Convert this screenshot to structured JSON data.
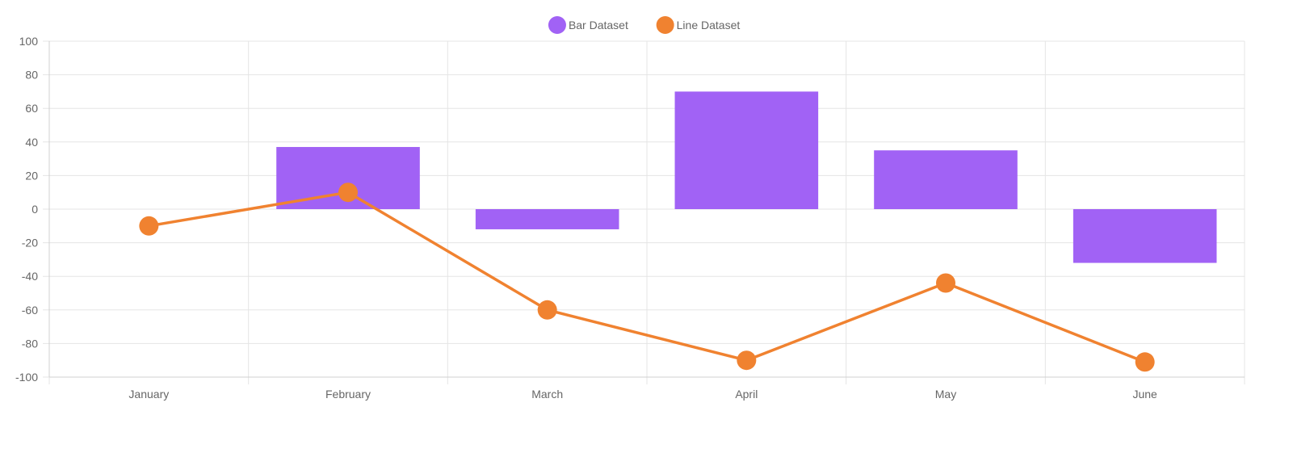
{
  "chart_data": {
    "type": "bar",
    "categories": [
      "January",
      "February",
      "March",
      "April",
      "May",
      "June"
    ],
    "series": [
      {
        "name": "Bar Dataset",
        "type": "bar",
        "color": "#a162f5",
        "values": [
          0,
          37,
          -12,
          70,
          35,
          -32
        ]
      },
      {
        "name": "Line Dataset",
        "type": "line",
        "color": "#f08230",
        "values": [
          -10,
          10,
          -60,
          -90,
          -44,
          -91
        ]
      }
    ],
    "ylim": [
      -100,
      100
    ],
    "yticks": [
      100,
      80,
      60,
      40,
      20,
      0,
      -20,
      -40,
      -60,
      -80,
      -100
    ],
    "grid": true,
    "legend": "top-center",
    "title": "",
    "xlabel": "",
    "ylabel": ""
  }
}
